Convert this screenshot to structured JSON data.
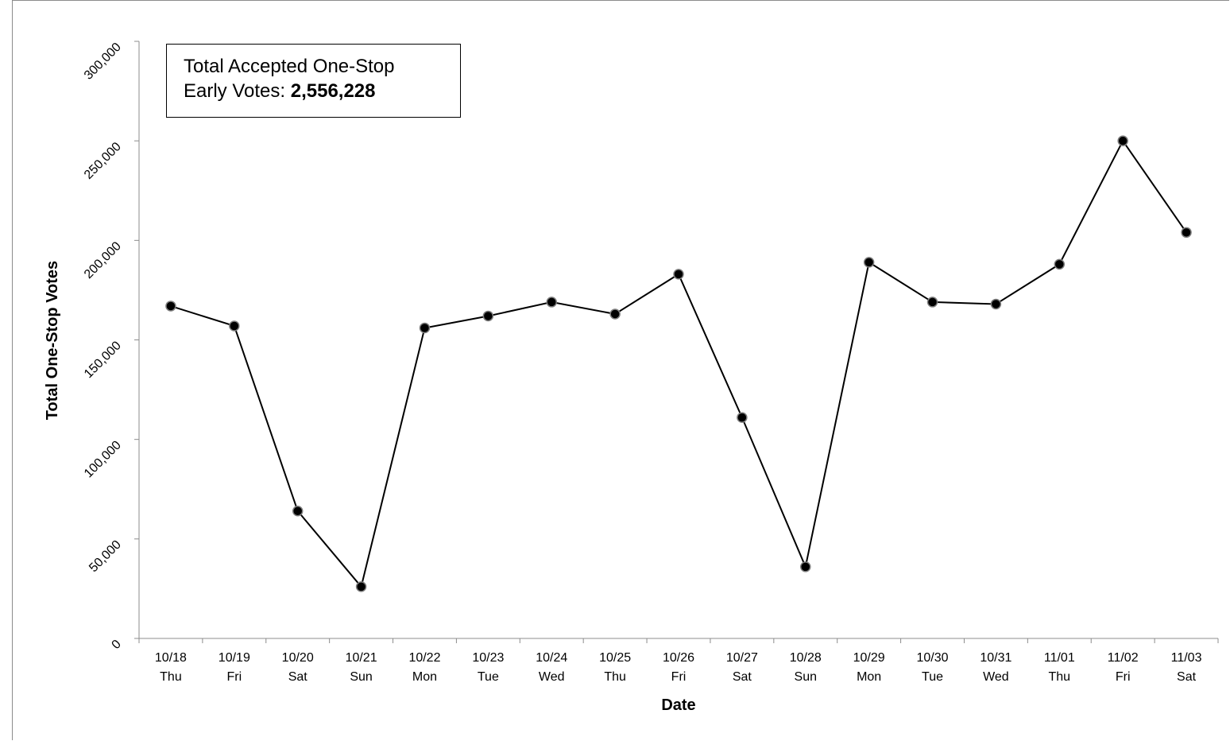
{
  "annotation": {
    "line1": "Total Accepted One-Stop",
    "line2_prefix": "Early Votes: ",
    "line2_value": "2,556,228"
  },
  "chart_data": {
    "type": "line",
    "xlabel": "Date",
    "ylabel": "Total One-Stop Votes",
    "ylim": [
      0,
      300000
    ],
    "y_ticks": [
      0,
      50000,
      100000,
      150000,
      200000,
      250000,
      300000
    ],
    "y_tick_labels": [
      "0",
      "50,000",
      "100,000",
      "150,000",
      "200,000",
      "250,000",
      "300,000"
    ],
    "categories": [
      "10/18",
      "10/19",
      "10/20",
      "10/21",
      "10/22",
      "10/23",
      "10/24",
      "10/25",
      "10/26",
      "10/27",
      "10/28",
      "10/29",
      "10/30",
      "10/31",
      "11/01",
      "11/02",
      "11/03"
    ],
    "weekdays": [
      "Thu",
      "Fri",
      "Sat",
      "Sun",
      "Mon",
      "Tue",
      "Wed",
      "Thu",
      "Fri",
      "Sat",
      "Sun",
      "Mon",
      "Tue",
      "Wed",
      "Thu",
      "Fri",
      "Sat"
    ],
    "series": [
      {
        "values": [
          167000,
          157000,
          64000,
          26000,
          156000,
          162000,
          169000,
          163000,
          183000,
          111000,
          36000,
          189000,
          169000,
          168000,
          188000,
          250000,
          204000
        ]
      }
    ],
    "line_color": "#000000",
    "marker_color": "#000000",
    "marker_stroke": "#7f7f7f",
    "grid": false,
    "legend": "none"
  }
}
